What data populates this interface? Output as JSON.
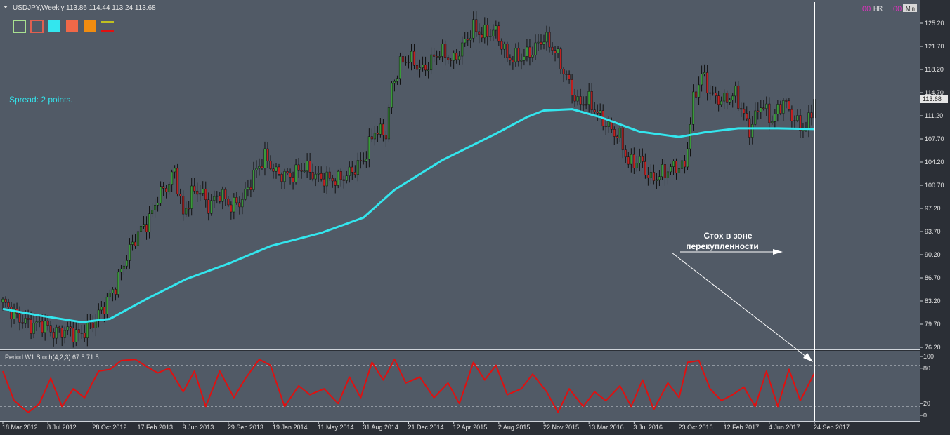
{
  "header": {
    "symbol": "USDJPY,Weekly",
    "ohlc": "113.86 114.44 113.24 113.68",
    "hr_prefix": "00",
    "hr_label": "HR",
    "min_prefix": "00",
    "min_label": "Min"
  },
  "colors": {
    "background": "#515a66",
    "candle_up": "#3a9a3a",
    "candle_down": "#c22020",
    "wick": "#111111",
    "ma_line": "#33e6ee",
    "stoch_line": "#e01010",
    "info_text": "#33e6ee",
    "swatches": [
      "#a8e090",
      "#e06050",
      "#33e6ee",
      "#f06848",
      "#f08c10",
      "#c0c020"
    ]
  },
  "spread_text": "Spread: 2 points.",
  "annotation": {
    "line1": "Стох в зоне",
    "line2": "перекупленности"
  },
  "price_axis": {
    "ticks": [
      "125.20",
      "121.70",
      "118.20",
      "114.70",
      "111.20",
      "107.70",
      "104.20",
      "100.70",
      "97.20",
      "93.70",
      "90.20",
      "86.70",
      "83.20",
      "79.70",
      "76.20"
    ],
    "current_price_label": "113.68"
  },
  "stoch_panel": {
    "title": "Period W1 Stoch(4,2,3) 67.5 71.5",
    "ticks": [
      "100",
      "80",
      "20",
      "0"
    ],
    "levels": [
      80,
      20
    ]
  },
  "time_axis": {
    "labels": [
      "18 Mar 2012",
      "8 Jul 2012",
      "28 Oct 2012",
      "17 Feb 2013",
      "9 Jun 2013",
      "29 Sep 2013",
      "19 Jan 2014",
      "11 May 2014",
      "31 Aug 2014",
      "21 Dec 2014",
      "12 Apr 2015",
      "2 Aug 2015",
      "22 Nov 2015",
      "13 Mar 2016",
      "3 Jul 2016",
      "23 Oct 2016",
      "12 Feb 2017",
      "4 Jun 2017",
      "24 Sep 2017"
    ]
  },
  "chart_data": {
    "type": "line",
    "title": "USDJPY,Weekly",
    "ylim": [
      76.2,
      127.0
    ],
    "x_start": "2012-03-18",
    "x_end": "2017-09-24",
    "x_tick_labels": [
      "18 Mar 2012",
      "8 Jul 2012",
      "28 Oct 2012",
      "17 Feb 2013",
      "9 Jun 2013",
      "29 Sep 2013",
      "19 Jan 2014",
      "11 May 2014",
      "31 Aug 2014",
      "21 Dec 2014",
      "12 Apr 2015",
      "2 Aug 2015",
      "22 Nov 2015",
      "13 Mar 2016",
      "3 Jul 2016",
      "23 Oct 2016",
      "12 Feb 2017",
      "4 Jun 2017",
      "24 Sep 2017"
    ],
    "price_close_path": [
      [
        "2012-03-18",
        83.0
      ],
      [
        "2012-04-22",
        80.8
      ],
      [
        "2012-05-27",
        79.5
      ],
      [
        "2012-06-24",
        79.8
      ],
      [
        "2012-07-22",
        78.4
      ],
      [
        "2012-08-26",
        78.8
      ],
      [
        "2012-09-23",
        78.0
      ],
      [
        "2012-10-28",
        79.8
      ],
      [
        "2012-11-25",
        82.5
      ],
      [
        "2012-12-23",
        85.5
      ],
      [
        "2013-01-20",
        90.0
      ],
      [
        "2013-02-17",
        93.5
      ],
      [
        "2013-03-17",
        95.5
      ],
      [
        "2013-04-07",
        99.0
      ],
      [
        "2013-05-05",
        101.0
      ],
      [
        "2013-05-19",
        103.0
      ],
      [
        "2013-06-09",
        96.0
      ],
      [
        "2013-06-30",
        99.5
      ],
      [
        "2013-07-21",
        100.0
      ],
      [
        "2013-08-11",
        97.5
      ],
      [
        "2013-09-08",
        99.5
      ],
      [
        "2013-10-06",
        97.5
      ],
      [
        "2013-11-03",
        98.5
      ],
      [
        "2013-12-08",
        103.0
      ],
      [
        "2013-12-29",
        105.0
      ],
      [
        "2014-01-26",
        102.5
      ],
      [
        "2014-03-02",
        102.0
      ],
      [
        "2014-04-06",
        103.5
      ],
      [
        "2014-05-11",
        101.8
      ],
      [
        "2014-06-29",
        101.5
      ],
      [
        "2014-07-27",
        102.5
      ],
      [
        "2014-08-31",
        104.5
      ],
      [
        "2014-09-28",
        109.0
      ],
      [
        "2014-10-26",
        108.5
      ],
      [
        "2014-11-09",
        115.5
      ],
      [
        "2014-11-30",
        119.0
      ],
      [
        "2014-12-21",
        120.0
      ],
      [
        "2015-01-25",
        118.0
      ],
      [
        "2015-03-08",
        121.0
      ],
      [
        "2015-04-12",
        119.5
      ],
      [
        "2015-05-31",
        124.5
      ],
      [
        "2015-06-21",
        123.5
      ],
      [
        "2015-07-26",
        124.0
      ],
      [
        "2015-08-23",
        120.0
      ],
      [
        "2015-09-27",
        120.0
      ],
      [
        "2015-10-25",
        121.0
      ],
      [
        "2015-11-22",
        123.0
      ],
      [
        "2015-12-20",
        121.0
      ],
      [
        "2016-01-17",
        117.0
      ],
      [
        "2016-02-14",
        113.0
      ],
      [
        "2016-03-13",
        113.5
      ],
      [
        "2016-04-03",
        111.5
      ],
      [
        "2016-05-08",
        109.0
      ],
      [
        "2016-05-29",
        108.0
      ],
      [
        "2016-06-19",
        104.0
      ],
      [
        "2016-07-17",
        104.5
      ],
      [
        "2016-08-14",
        101.5
      ],
      [
        "2016-09-11",
        102.5
      ],
      [
        "2016-10-09",
        103.5
      ],
      [
        "2016-11-06",
        103.5
      ],
      [
        "2016-11-27",
        113.5
      ],
      [
        "2016-12-18",
        117.5
      ],
      [
        "2017-01-15",
        114.0
      ],
      [
        "2017-02-12",
        113.5
      ],
      [
        "2017-03-12",
        114.5
      ],
      [
        "2017-04-16",
        109.0
      ],
      [
        "2017-05-14",
        113.0
      ],
      [
        "2017-06-11",
        110.5
      ],
      [
        "2017-07-09",
        113.5
      ],
      [
        "2017-08-06",
        110.5
      ],
      [
        "2017-09-03",
        109.0
      ],
      [
        "2017-09-24",
        113.68
      ]
    ],
    "moving_average": [
      [
        "2012-03-18",
        82.0
      ],
      [
        "2012-06-17",
        81.0
      ],
      [
        "2012-09-30",
        80.0
      ],
      [
        "2012-12-09",
        80.5
      ],
      [
        "2013-03-10",
        83.5
      ],
      [
        "2013-06-16",
        86.5
      ],
      [
        "2013-10-06",
        89.0
      ],
      [
        "2014-01-12",
        91.5
      ],
      [
        "2014-05-18",
        93.5
      ],
      [
        "2014-08-31",
        95.8
      ],
      [
        "2014-11-16",
        100.0
      ],
      [
        "2015-03-15",
        104.5
      ],
      [
        "2015-07-26",
        108.5
      ],
      [
        "2015-10-11",
        111.0
      ],
      [
        "2015-11-22",
        112.0
      ],
      [
        "2016-01-31",
        112.2
      ],
      [
        "2016-04-10",
        111.0
      ],
      [
        "2016-07-17",
        108.8
      ],
      [
        "2016-10-23",
        108.0
      ],
      [
        "2016-12-25",
        108.7
      ],
      [
        "2017-03-19",
        109.3
      ],
      [
        "2017-06-25",
        109.3
      ],
      [
        "2017-09-24",
        109.2
      ]
    ],
    "stochastic": {
      "name": "Stoch(4,2,3)",
      "ylim": [
        0,
        100
      ],
      "points": [
        [
          "2012-03-18",
          75
        ],
        [
          "2012-04-15",
          25
        ],
        [
          "2012-05-20",
          5
        ],
        [
          "2012-06-17",
          20
        ],
        [
          "2012-07-15",
          63
        ],
        [
          "2012-08-12",
          15
        ],
        [
          "2012-09-09",
          45
        ],
        [
          "2012-10-07",
          30
        ],
        [
          "2012-11-11",
          75
        ],
        [
          "2012-12-09",
          78
        ],
        [
          "2013-01-06",
          93
        ],
        [
          "2013-02-10",
          95
        ],
        [
          "2013-03-17",
          80
        ],
        [
          "2013-04-07",
          72
        ],
        [
          "2013-05-05",
          80
        ],
        [
          "2013-06-09",
          40
        ],
        [
          "2013-07-07",
          75
        ],
        [
          "2013-08-04",
          15
        ],
        [
          "2013-09-08",
          75
        ],
        [
          "2013-10-13",
          30
        ],
        [
          "2013-11-10",
          62
        ],
        [
          "2013-12-15",
          95
        ],
        [
          "2014-01-12",
          85
        ],
        [
          "2014-02-16",
          15
        ],
        [
          "2014-03-23",
          50
        ],
        [
          "2014-04-20",
          35
        ],
        [
          "2014-05-25",
          45
        ],
        [
          "2014-06-29",
          20
        ],
        [
          "2014-07-27",
          65
        ],
        [
          "2014-08-24",
          30
        ],
        [
          "2014-09-21",
          90
        ],
        [
          "2014-10-19",
          60
        ],
        [
          "2014-11-16",
          95
        ],
        [
          "2014-12-14",
          55
        ],
        [
          "2015-01-18",
          65
        ],
        [
          "2015-02-22",
          30
        ],
        [
          "2015-03-29",
          55
        ],
        [
          "2015-04-26",
          20
        ],
        [
          "2015-05-31",
          90
        ],
        [
          "2015-06-28",
          60
        ],
        [
          "2015-07-26",
          85
        ],
        [
          "2015-08-23",
          35
        ],
        [
          "2015-09-27",
          45
        ],
        [
          "2015-10-25",
          70
        ],
        [
          "2015-11-29",
          40
        ],
        [
          "2015-12-27",
          5
        ],
        [
          "2016-01-24",
          45
        ],
        [
          "2016-02-28",
          15
        ],
        [
          "2016-03-27",
          40
        ],
        [
          "2016-04-24",
          25
        ],
        [
          "2016-05-29",
          50
        ],
        [
          "2016-06-26",
          15
        ],
        [
          "2016-07-24",
          60
        ],
        [
          "2016-08-21",
          10
        ],
        [
          "2016-09-25",
          55
        ],
        [
          "2016-10-23",
          30
        ],
        [
          "2016-11-13",
          90
        ],
        [
          "2016-12-11",
          93
        ],
        [
          "2017-01-08",
          45
        ],
        [
          "2017-02-05",
          25
        ],
        [
          "2017-03-05",
          35
        ],
        [
          "2017-04-02",
          48
        ],
        [
          "2017-04-30",
          15
        ],
        [
          "2017-05-28",
          75
        ],
        [
          "2017-06-25",
          15
        ],
        [
          "2017-07-23",
          78
        ],
        [
          "2017-08-20",
          25
        ],
        [
          "2017-09-24",
          71.5
        ]
      ]
    }
  }
}
